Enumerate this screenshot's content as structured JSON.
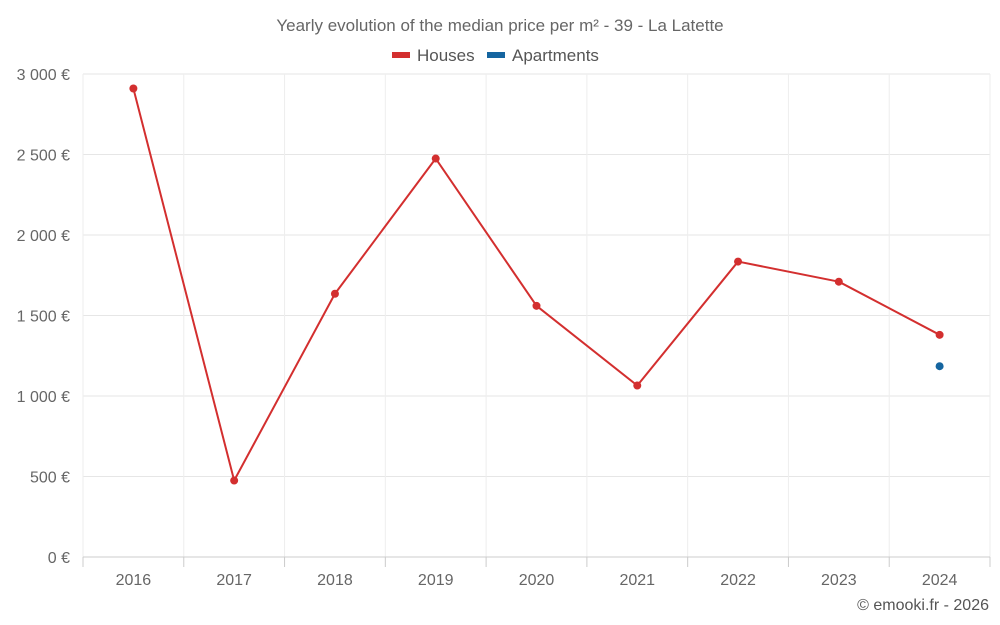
{
  "chart_data": {
    "type": "line",
    "title": "Yearly evolution of the median price per m² - 39 - La Latette",
    "categories": [
      "2016",
      "2017",
      "2018",
      "2019",
      "2020",
      "2021",
      "2022",
      "2023",
      "2024"
    ],
    "series": [
      {
        "name": "Houses",
        "color": "#d32f2f",
        "values": [
          2910,
          475,
          1635,
          2475,
          1560,
          1065,
          1835,
          1710,
          1380
        ]
      },
      {
        "name": "Apartments",
        "color": "#1565a0",
        "values": [
          null,
          null,
          null,
          null,
          null,
          null,
          null,
          null,
          1185
        ]
      }
    ],
    "ylim": [
      0,
      3000
    ],
    "yticks": [
      0,
      500,
      1000,
      1500,
      2000,
      2500,
      3000
    ],
    "ytick_labels": [
      "0 €",
      "500 €",
      "1 000 €",
      "1 500 €",
      "2 000 €",
      "2 500 €",
      "3 000 €"
    ],
    "xlabel": "",
    "ylabel": "",
    "grid": true,
    "legend_position": "top-center"
  },
  "credit": "© emooki.fr - 2026"
}
